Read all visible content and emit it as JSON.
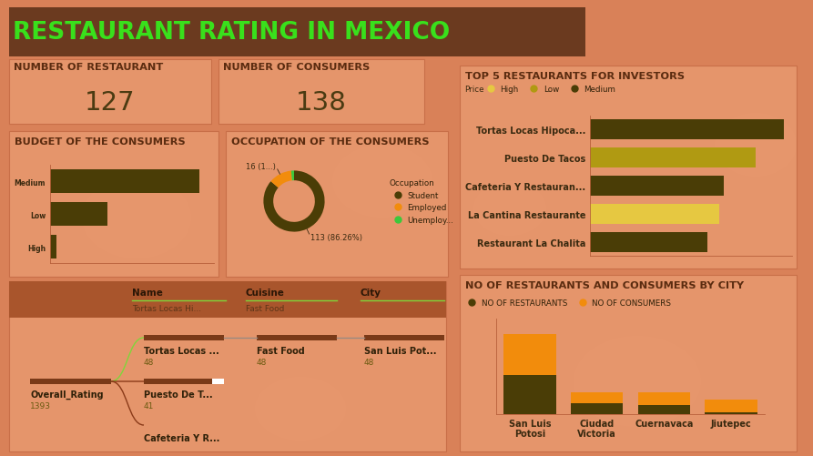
{
  "title": "RESTAURANT RATING IN MEXICO",
  "cards": [
    {
      "label": "NUMBER OF RESTAURANT",
      "value": 127
    },
    {
      "label": "NUMBER OF CONSUMERS",
      "value": 138
    }
  ],
  "chart_data": [
    {
      "type": "bar",
      "title": "BUDGET OF THE CONSUMERS",
      "orientation": "horizontal",
      "categories": [
        "Medium",
        "Low",
        "High"
      ],
      "values": [
        91,
        35,
        4
      ],
      "color": "#4a3d06",
      "xlim": [
        0,
        100
      ],
      "tick_labels": "y"
    },
    {
      "type": "pie",
      "title": "OCCUPATION OF THE CONSUMERS",
      "categories": [
        "Student",
        "Employed",
        "Unemploy..."
      ],
      "values": [
        113,
        16,
        2
      ],
      "colors": [
        "#4a3d06",
        "#f28c0c",
        "#3cc83c"
      ],
      "data_labels": true,
      "value_labels": [
        "113 (86.26%)",
        "16 (1...)",
        null
      ],
      "legend": "right",
      "legend_title": "Occupation"
    },
    {
      "type": "bar",
      "title": "TOP 5 RESTAURANTS FOR INVESTORS",
      "orientation": "horizontal",
      "categories": [
        "Tortas Locas Hipoca...",
        "Puesto De Tacos",
        "Cafeteria Y Restauran...",
        "La Cantina Restaurante",
        "Restaurant La Chalita"
      ],
      "series": [
        {
          "name": "High",
          "color": "#e6c841",
          "values": [
            null,
            null,
            null,
            32,
            null
          ]
        },
        {
          "name": "Low",
          "color": "#b09a12",
          "values": [
            null,
            41,
            null,
            null,
            null
          ]
        },
        {
          "name": "Medium",
          "color": "#4a3d06",
          "values": [
            48,
            null,
            33,
            null,
            29
          ]
        }
      ],
      "legend": "upper left",
      "legend_title": "Price",
      "xlim": [
        0,
        50
      ],
      "tick_labels": "y"
    },
    {
      "type": "bar",
      "title": "NO OF RESTAURANTS AND CONSUMERS BY CITY",
      "stacked": true,
      "categories": [
        "San Luis Potosi",
        "Ciudad Victoria",
        "Cuernavaca",
        "Jiutepec"
      ],
      "series": [
        {
          "name": "NO OF RESTAURANTS",
          "color": "#4a3d06",
          "values": [
            82,
            23,
            19,
            3
          ]
        },
        {
          "name": "NO OF CONSUMERS",
          "color": "#f28c0c",
          "values": [
            86,
            22,
            27,
            27
          ]
        }
      ],
      "legend": "upper left",
      "ylim": [
        0,
        200
      ],
      "tick_labels": "x"
    }
  ],
  "decomposition_tree": {
    "headers": [
      {
        "label": "Name",
        "selected": "Tortas Locas Hi..."
      },
      {
        "label": "Cuisine",
        "selected": "Fast Food"
      },
      {
        "label": "City"
      }
    ],
    "root": {
      "label": "Overall_Rating",
      "value": 1393
    },
    "levels": [
      [
        {
          "label": "Tortas Locas ...",
          "value": 48
        },
        {
          "label": "Puesto De T...",
          "value": 41
        },
        {
          "label": "Cafeteria Y R..."
        }
      ],
      [
        {
          "label": "Fast Food",
          "value": 48
        }
      ],
      [
        {
          "label": "San Luis Pot...",
          "value": 48
        }
      ]
    ]
  }
}
